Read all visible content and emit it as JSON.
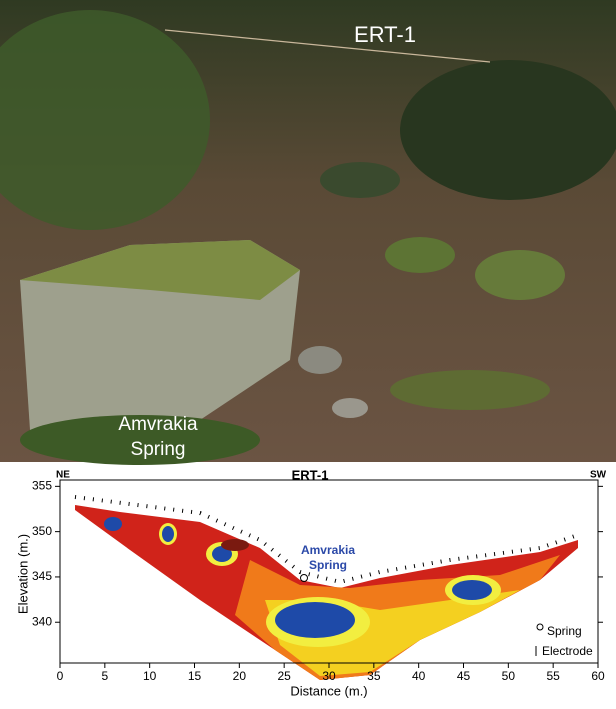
{
  "photo": {
    "label": "ERT-1",
    "spring_label": [
      "Amvrakia",
      "Spring"
    ]
  },
  "chart_data": {
    "type": "section",
    "title": "ERT-1",
    "x_label": "Distance (m.)",
    "y_label": "Elevation (m.)",
    "xlim": [
      0,
      60
    ],
    "xticks": [
      0,
      5,
      10,
      15,
      20,
      25,
      30,
      35,
      40,
      45,
      50,
      55,
      60
    ],
    "ylim": [
      335.5,
      355.7
    ],
    "yticks": [
      340,
      345,
      350,
      355
    ],
    "annotations": {
      "left_end": "NE",
      "right_end": "SW",
      "spring": [
        "Amvrakia",
        "Spring"
      ]
    },
    "legend": [
      "Spring",
      "Electrode"
    ]
  }
}
